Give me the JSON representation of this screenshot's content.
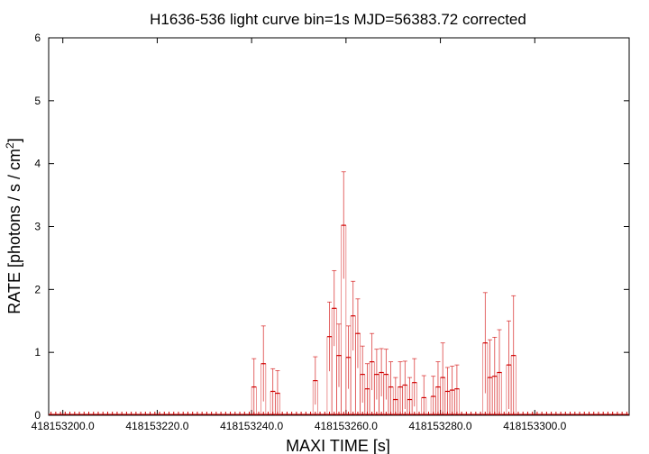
{
  "chart_data": {
    "type": "line",
    "title": "H1636-536 light curve bin=1s MJD=56383.72 corrected",
    "xlabel": "MAXI TIME [s]",
    "ylabel_main": "RATE [photons / s / cm",
    "ylabel_sup": "2",
    "ylabel_end": "]",
    "xlim": [
      418153197,
      418153320
    ],
    "ylim": [
      0,
      6
    ],
    "x_ticks": [
      {
        "value": 418153200,
        "label": "418153200.0"
      },
      {
        "value": 418153220,
        "label": "418153220.0"
      },
      {
        "value": 418153240,
        "label": "418153240.0"
      },
      {
        "value": 418153260,
        "label": "418153260.0"
      },
      {
        "value": 418153280,
        "label": "418153280.0"
      },
      {
        "value": 418153300,
        "label": "418153300.0"
      }
    ],
    "y_ticks": [
      {
        "value": 0,
        "label": "0"
      },
      {
        "value": 1,
        "label": "1"
      },
      {
        "value": 2,
        "label": "2"
      },
      {
        "value": 3,
        "label": "3"
      },
      {
        "value": 4,
        "label": "4"
      },
      {
        "value": 5,
        "label": "5"
      },
      {
        "value": 6,
        "label": "6"
      }
    ],
    "grid": false,
    "color": "#d00000",
    "series": [
      {
        "points": [
          [
            418153240.5,
            0.45,
            0.45
          ],
          [
            418153242.5,
            0.82,
            0.6
          ],
          [
            418153244.5,
            0.38,
            0.36
          ],
          [
            418153245.5,
            0.35,
            0.36
          ],
          [
            418153253.5,
            0.55,
            0.38
          ],
          [
            418153256.5,
            1.25,
            0.55
          ],
          [
            418153257.5,
            1.7,
            0.6
          ],
          [
            418153258.5,
            0.95,
            0.5
          ],
          [
            418153259.5,
            3.02,
            0.85
          ],
          [
            418153260.5,
            0.92,
            0.5
          ],
          [
            418153261.5,
            1.58,
            0.55
          ],
          [
            418153262.5,
            1.3,
            0.55
          ],
          [
            418153263.5,
            0.65,
            0.45
          ],
          [
            418153264.5,
            0.42,
            0.4
          ],
          [
            418153265.5,
            0.85,
            0.45
          ],
          [
            418153266.5,
            0.65,
            0.4
          ],
          [
            418153267.5,
            0.68,
            0.38
          ],
          [
            418153268.5,
            0.65,
            0.4
          ],
          [
            418153269.5,
            0.45,
            0.4
          ],
          [
            418153270.5,
            0.25,
            0.35
          ],
          [
            418153271.5,
            0.45,
            0.4
          ],
          [
            418153272.5,
            0.48,
            0.38
          ],
          [
            418153273.5,
            0.25,
            0.35
          ],
          [
            418153274.5,
            0.52,
            0.38
          ],
          [
            418153276.5,
            0.28,
            0.35
          ],
          [
            418153278.5,
            0.3,
            0.32
          ],
          [
            418153279.5,
            0.45,
            0.4
          ],
          [
            418153280.5,
            0.6,
            0.55
          ],
          [
            418153281.5,
            0.38,
            0.38
          ],
          [
            418153282.5,
            0.4,
            0.38
          ],
          [
            418153283.5,
            0.42,
            0.38
          ],
          [
            418153289.5,
            1.15,
            0.8
          ],
          [
            418153290.5,
            0.6,
            0.6
          ],
          [
            418153291.5,
            0.62,
            0.62
          ],
          [
            418153292.5,
            0.68,
            0.68
          ],
          [
            418153294.5,
            0.8,
            0.7
          ],
          [
            418153295.5,
            0.95,
            0.95
          ]
        ]
      }
    ]
  }
}
